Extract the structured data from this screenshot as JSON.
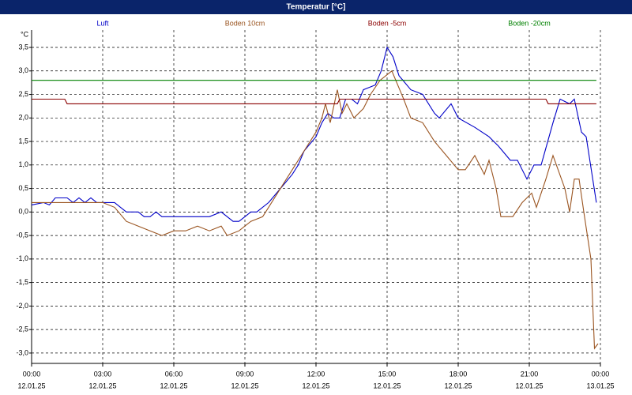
{
  "chart_data": {
    "type": "line",
    "title": "Temperatur [°C]",
    "y_unit": "°C",
    "xlim": [
      0,
      24
    ],
    "ylim": [
      -3.22,
      3.87
    ],
    "grid": true,
    "xticks": [
      {
        "value": 0,
        "label": "00:00"
      },
      {
        "value": 3,
        "label": "03:00"
      },
      {
        "value": 6,
        "label": "06:00"
      },
      {
        "value": 9,
        "label": "09:00"
      },
      {
        "value": 12,
        "label": "12:00"
      },
      {
        "value": 15,
        "label": "15:00"
      },
      {
        "value": 18,
        "label": "18:00"
      },
      {
        "value": 21,
        "label": "21:00"
      },
      {
        "value": 24,
        "label": "00:00"
      }
    ],
    "xtick_dates": [
      "12.01.25",
      "12.01.25",
      "12.01.25",
      "12.01.25",
      "12.01.25",
      "12.01.25",
      "12.01.25",
      "12.01.25",
      "13.01.25"
    ],
    "yticks": [
      {
        "value": 3.5,
        "label": "3,5"
      },
      {
        "value": 3,
        "label": "3,0"
      },
      {
        "value": 2.5,
        "label": "2,5"
      },
      {
        "value": 2,
        "label": "2,0"
      },
      {
        "value": 1.5,
        "label": "1,5"
      },
      {
        "value": 1,
        "label": "1,0"
      },
      {
        "value": 0.5,
        "label": "0,5"
      },
      {
        "value": 0,
        "label": "0,0"
      },
      {
        "value": -0.5,
        "label": "-0,5"
      },
      {
        "value": -1,
        "label": "-1,0"
      },
      {
        "value": -1.5,
        "label": "-1,5"
      },
      {
        "value": -2,
        "label": "-2,0"
      },
      {
        "value": -2.5,
        "label": "-2,5"
      },
      {
        "value": -3,
        "label": "-3,0"
      }
    ],
    "series": [
      {
        "name": "Luft",
        "color": "#0000c8",
        "x": [
          0,
          0.5,
          0.75,
          1,
          1.5,
          1.75,
          2,
          2.25,
          2.5,
          2.75,
          3,
          3.5,
          3.75,
          4,
          4.5,
          4.75,
          5,
          5.25,
          5.5,
          6,
          7,
          7.5,
          8,
          8.5,
          8.75,
          9,
          9.25,
          9.5,
          10,
          10.5,
          11,
          11.25,
          11.5,
          12,
          12.25,
          12.5,
          12.75,
          13,
          13.25,
          13.5,
          13.75,
          14,
          14.5,
          14.75,
          15,
          15.25,
          15.5,
          16,
          16.5,
          17,
          17.2,
          17.7,
          18,
          18.7,
          19.3,
          19.7,
          20.2,
          20.5,
          20.9,
          21.2,
          21.5,
          22,
          22.3,
          22.7,
          22.9,
          23.2,
          23.4,
          23.83
        ],
        "values": [
          0.15,
          0.2,
          0.15,
          0.3,
          0.3,
          0.2,
          0.3,
          0.2,
          0.3,
          0.2,
          0.2,
          0.2,
          0.1,
          0,
          0,
          -0.1,
          -0.1,
          0,
          -0.1,
          -0.1,
          -0.1,
          -0.1,
          0,
          -0.2,
          -0.2,
          -0.1,
          0,
          0,
          0.2,
          0.5,
          0.8,
          1,
          1.3,
          1.6,
          1.9,
          2.1,
          2,
          2,
          2.4,
          2.4,
          2.3,
          2.6,
          2.7,
          3,
          3.5,
          3.3,
          2.9,
          2.6,
          2.5,
          2.1,
          2,
          2.3,
          2,
          1.8,
          1.6,
          1.4,
          1.1,
          1.1,
          0.7,
          1,
          1,
          1.9,
          2.4,
          2.3,
          2.4,
          1.7,
          1.6,
          0.2
        ]
      },
      {
        "name": "Boden 10cm",
        "color": "#9a5420",
        "x": [
          0,
          3,
          3.5,
          4,
          4.5,
          5,
          5.5,
          6,
          6.5,
          7,
          7.5,
          8,
          8.25,
          8.75,
          9.25,
          9.75,
          10,
          10.5,
          11,
          11.5,
          12,
          12.25,
          12.4,
          12.6,
          12.9,
          13.1,
          13.3,
          13.6,
          14,
          14.3,
          14.7,
          15.2,
          15.7,
          16,
          16.5,
          17,
          17.5,
          18,
          18.3,
          18.7,
          19.1,
          19.3,
          19.6,
          19.8,
          20.3,
          20.7,
          21.1,
          21.3,
          21.7,
          22,
          22.5,
          22.7,
          22.9,
          23.1,
          23.3,
          23.6,
          23.75,
          23.9
        ],
        "values": [
          0.2,
          0.2,
          0.1,
          -0.2,
          -0.3,
          -0.4,
          -0.5,
          -0.4,
          -0.4,
          -0.3,
          -0.4,
          -0.3,
          -0.5,
          -0.4,
          -0.2,
          -0.1,
          0.1,
          0.5,
          0.9,
          1.3,
          1.7,
          2,
          2.3,
          1.9,
          2.6,
          2.1,
          2.3,
          2,
          2.2,
          2.5,
          2.8,
          3,
          2.4,
          2,
          1.9,
          1.5,
          1.2,
          0.9,
          0.9,
          1.2,
          0.8,
          1.1,
          0.5,
          -0.1,
          -0.1,
          0.2,
          0.4,
          0.1,
          0.7,
          1.2,
          0.5,
          0,
          0.7,
          0.7,
          0,
          -1,
          -2.9,
          -2.8
        ]
      },
      {
        "name": "Boden -5cm",
        "color": "#8b0000",
        "x": [
          0,
          1.4,
          1.5,
          12.9,
          13,
          21.7,
          21.8,
          23.83
        ],
        "values": [
          2.4,
          2.4,
          2.3,
          2.3,
          2.4,
          2.4,
          2.3,
          2.3
        ]
      },
      {
        "name": "Boden -20cm",
        "color": "#008000",
        "x": [
          0,
          23.83
        ],
        "values": [
          2.8,
          2.8
        ]
      }
    ]
  }
}
